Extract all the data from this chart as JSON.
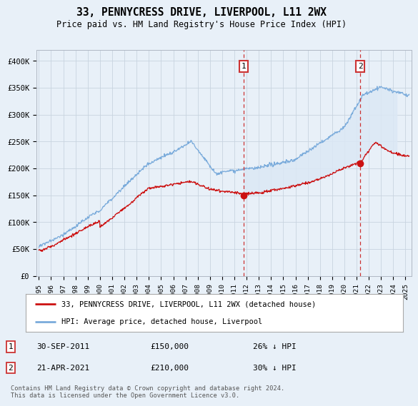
{
  "title": "33, PENNYCRESS DRIVE, LIVERPOOL, L11 2WX",
  "subtitle": "Price paid vs. HM Land Registry's House Price Index (HPI)",
  "yticks": [
    0,
    50000,
    100000,
    150000,
    200000,
    250000,
    300000,
    350000,
    400000
  ],
  "ytick_labels": [
    "£0",
    "£50K",
    "£100K",
    "£150K",
    "£200K",
    "£250K",
    "£300K",
    "£350K",
    "£400K"
  ],
  "xlim_start": 1994.8,
  "xlim_end": 2025.5,
  "ylim": [
    0,
    420000
  ],
  "hpi_color": "#7aabdb",
  "hpi_fill_color": "#dce8f5",
  "price_color": "#cc1111",
  "marker1_date": 2011.75,
  "marker1_price": 150000,
  "marker2_date": 2021.3,
  "marker2_price": 210000,
  "legend_label1": "33, PENNYCRESS DRIVE, LIVERPOOL, L11 2WX (detached house)",
  "legend_label2": "HPI: Average price, detached house, Liverpool",
  "marker1_text": "30-SEP-2011",
  "marker1_amount": "£150,000",
  "marker1_hpi": "26% ↓ HPI",
  "marker2_text": "21-APR-2021",
  "marker2_amount": "£210,000",
  "marker2_hpi": "30% ↓ HPI",
  "footer": "Contains HM Land Registry data © Crown copyright and database right 2024.\nThis data is licensed under the Open Government Licence v3.0.",
  "bg_color": "#e8f0f8",
  "plot_bg_color": "#e8f0f8"
}
